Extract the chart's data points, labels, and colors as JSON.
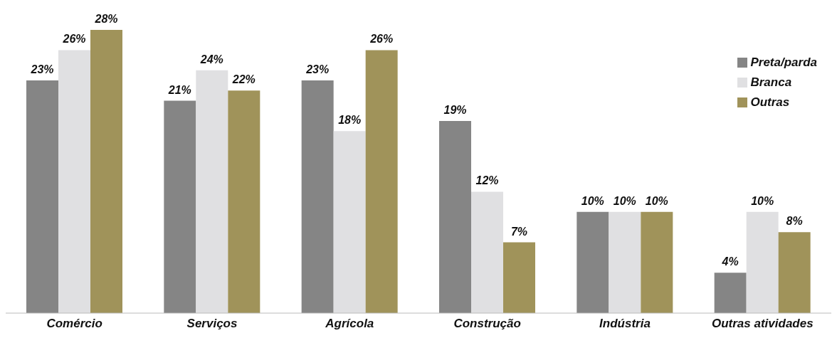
{
  "chart_data": {
    "type": "bar",
    "categories": [
      "Comércio",
      "Serviços",
      "Agrícola",
      "Construção",
      "Indústria",
      "Outras atividades"
    ],
    "series": [
      {
        "name": "Preta/parda",
        "color": "#858585",
        "values": [
          23,
          21,
          23,
          19,
          10,
          4
        ],
        "value_labels": [
          "23%",
          "21%",
          "23%",
          "19%",
          "10%",
          "4%"
        ]
      },
      {
        "name": "Branca",
        "color": "#e0e0e2",
        "values": [
          26,
          24,
          18,
          12,
          10,
          10
        ],
        "value_labels": [
          "26%",
          "24%",
          "18%",
          "12%",
          "10%",
          "10%"
        ]
      },
      {
        "name": "Outras",
        "color": "#a0935a",
        "values": [
          28,
          22,
          26,
          7,
          10,
          8
        ],
        "value_labels": [
          "28%",
          "22%",
          "26%",
          "7%",
          "10%",
          "8%"
        ]
      }
    ],
    "legend": "top right"
  }
}
